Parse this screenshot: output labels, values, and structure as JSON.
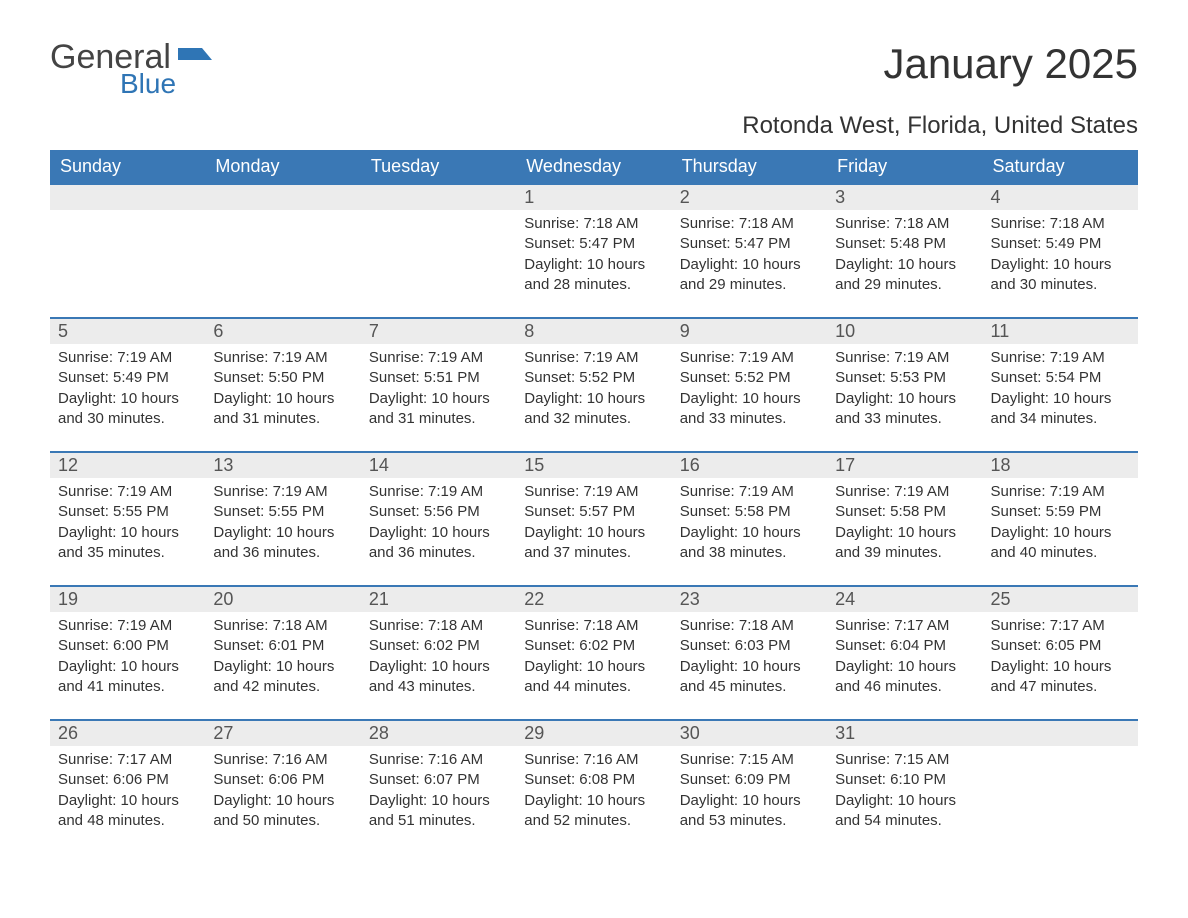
{
  "logo": {
    "general": "General",
    "blue": "Blue",
    "flag_color": "#2f75b5"
  },
  "title": "January 2025",
  "location": "Rotonda West, Florida, United States",
  "colors": {
    "header_bg": "#3a78b5",
    "header_text": "#ffffff",
    "row_border": "#3a78b5",
    "daynum_bg": "#ececec",
    "body_text": "#333333",
    "page_bg": "#ffffff"
  },
  "typography": {
    "title_fontsize": 42,
    "location_fontsize": 24,
    "header_fontsize": 18,
    "daynum_fontsize": 18,
    "body_fontsize": 15
  },
  "weekdays": [
    "Sunday",
    "Monday",
    "Tuesday",
    "Wednesday",
    "Thursday",
    "Friday",
    "Saturday"
  ],
  "labels": {
    "sunrise": "Sunrise",
    "sunset": "Sunset",
    "daylight": "Daylight"
  },
  "weeks": [
    [
      null,
      null,
      null,
      {
        "n": "1",
        "sunrise": "7:18 AM",
        "sunset": "5:47 PM",
        "daylight": "10 hours and 28 minutes."
      },
      {
        "n": "2",
        "sunrise": "7:18 AM",
        "sunset": "5:47 PM",
        "daylight": "10 hours and 29 minutes."
      },
      {
        "n": "3",
        "sunrise": "7:18 AM",
        "sunset": "5:48 PM",
        "daylight": "10 hours and 29 minutes."
      },
      {
        "n": "4",
        "sunrise": "7:18 AM",
        "sunset": "5:49 PM",
        "daylight": "10 hours and 30 minutes."
      }
    ],
    [
      {
        "n": "5",
        "sunrise": "7:19 AM",
        "sunset": "5:49 PM",
        "daylight": "10 hours and 30 minutes."
      },
      {
        "n": "6",
        "sunrise": "7:19 AM",
        "sunset": "5:50 PM",
        "daylight": "10 hours and 31 minutes."
      },
      {
        "n": "7",
        "sunrise": "7:19 AM",
        "sunset": "5:51 PM",
        "daylight": "10 hours and 31 minutes."
      },
      {
        "n": "8",
        "sunrise": "7:19 AM",
        "sunset": "5:52 PM",
        "daylight": "10 hours and 32 minutes."
      },
      {
        "n": "9",
        "sunrise": "7:19 AM",
        "sunset": "5:52 PM",
        "daylight": "10 hours and 33 minutes."
      },
      {
        "n": "10",
        "sunrise": "7:19 AM",
        "sunset": "5:53 PM",
        "daylight": "10 hours and 33 minutes."
      },
      {
        "n": "11",
        "sunrise": "7:19 AM",
        "sunset": "5:54 PM",
        "daylight": "10 hours and 34 minutes."
      }
    ],
    [
      {
        "n": "12",
        "sunrise": "7:19 AM",
        "sunset": "5:55 PM",
        "daylight": "10 hours and 35 minutes."
      },
      {
        "n": "13",
        "sunrise": "7:19 AM",
        "sunset": "5:55 PM",
        "daylight": "10 hours and 36 minutes."
      },
      {
        "n": "14",
        "sunrise": "7:19 AM",
        "sunset": "5:56 PM",
        "daylight": "10 hours and 36 minutes."
      },
      {
        "n": "15",
        "sunrise": "7:19 AM",
        "sunset": "5:57 PM",
        "daylight": "10 hours and 37 minutes."
      },
      {
        "n": "16",
        "sunrise": "7:19 AM",
        "sunset": "5:58 PM",
        "daylight": "10 hours and 38 minutes."
      },
      {
        "n": "17",
        "sunrise": "7:19 AM",
        "sunset": "5:58 PM",
        "daylight": "10 hours and 39 minutes."
      },
      {
        "n": "18",
        "sunrise": "7:19 AM",
        "sunset": "5:59 PM",
        "daylight": "10 hours and 40 minutes."
      }
    ],
    [
      {
        "n": "19",
        "sunrise": "7:19 AM",
        "sunset": "6:00 PM",
        "daylight": "10 hours and 41 minutes."
      },
      {
        "n": "20",
        "sunrise": "7:18 AM",
        "sunset": "6:01 PM",
        "daylight": "10 hours and 42 minutes."
      },
      {
        "n": "21",
        "sunrise": "7:18 AM",
        "sunset": "6:02 PM",
        "daylight": "10 hours and 43 minutes."
      },
      {
        "n": "22",
        "sunrise": "7:18 AM",
        "sunset": "6:02 PM",
        "daylight": "10 hours and 44 minutes."
      },
      {
        "n": "23",
        "sunrise": "7:18 AM",
        "sunset": "6:03 PM",
        "daylight": "10 hours and 45 minutes."
      },
      {
        "n": "24",
        "sunrise": "7:17 AM",
        "sunset": "6:04 PM",
        "daylight": "10 hours and 46 minutes."
      },
      {
        "n": "25",
        "sunrise": "7:17 AM",
        "sunset": "6:05 PM",
        "daylight": "10 hours and 47 minutes."
      }
    ],
    [
      {
        "n": "26",
        "sunrise": "7:17 AM",
        "sunset": "6:06 PM",
        "daylight": "10 hours and 48 minutes."
      },
      {
        "n": "27",
        "sunrise": "7:16 AM",
        "sunset": "6:06 PM",
        "daylight": "10 hours and 50 minutes."
      },
      {
        "n": "28",
        "sunrise": "7:16 AM",
        "sunset": "6:07 PM",
        "daylight": "10 hours and 51 minutes."
      },
      {
        "n": "29",
        "sunrise": "7:16 AM",
        "sunset": "6:08 PM",
        "daylight": "10 hours and 52 minutes."
      },
      {
        "n": "30",
        "sunrise": "7:15 AM",
        "sunset": "6:09 PM",
        "daylight": "10 hours and 53 minutes."
      },
      {
        "n": "31",
        "sunrise": "7:15 AM",
        "sunset": "6:10 PM",
        "daylight": "10 hours and 54 minutes."
      },
      null
    ]
  ]
}
